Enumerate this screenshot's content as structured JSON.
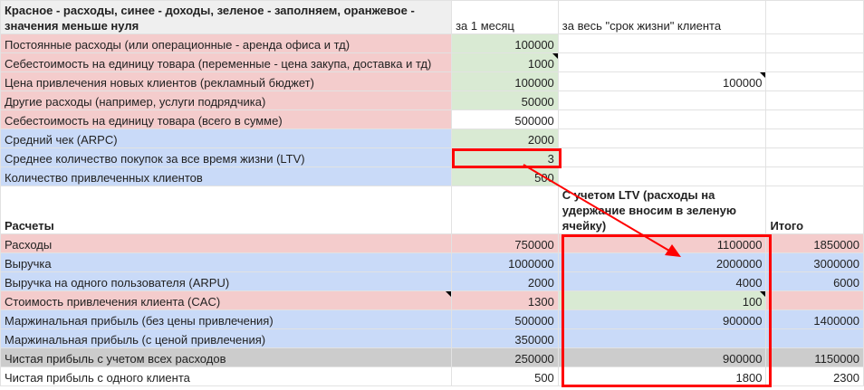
{
  "header": {
    "legend": "Красное - расходы, синее - доходы, зеленое - заполняем, оранжевое - значения меньше нуля",
    "col_month": "за 1 месяц",
    "col_lifetime": "за весь \"срок жизни\" клиента"
  },
  "inputs": [
    {
      "label": "Постоянные расходы (или операционные - аренда офиса и тд)",
      "month": "100000",
      "lifetime": ""
    },
    {
      "label": "Себестоимость на единицу товара (переменные - цена закупа, доставка и тд)",
      "month": "1000",
      "lifetime": ""
    },
    {
      "label": "Цена привлечения новых клиентов (рекламный бюджет)",
      "month": "100000",
      "lifetime": "100000"
    },
    {
      "label": "Другие расходы (например, услуги подрядчика)",
      "month": "50000",
      "lifetime": ""
    },
    {
      "label": "Себестоимость на единицу товара (всего в сумме)",
      "month": "500000",
      "lifetime": ""
    },
    {
      "label": "Средний чек (ARPC)",
      "month": "2000",
      "lifetime": ""
    },
    {
      "label": "Среднее количество покупок за все время жизни (LTV)",
      "month": "3",
      "lifetime": ""
    },
    {
      "label": "Количество привлеченных клиентов",
      "month": "500",
      "lifetime": ""
    }
  ],
  "calc_header": {
    "title": "Расчеты",
    "ltv": "С учетом LTV (расходы на удержание вносим в зеленую ячейку)",
    "total": "Итого"
  },
  "calc": [
    {
      "label": "Расходы",
      "month": "750000",
      "ltv": "1100000",
      "total": "1850000"
    },
    {
      "label": "Выручка",
      "month": "1000000",
      "ltv": "2000000",
      "total": "3000000"
    },
    {
      "label": "Выручка на одного пользователя (ARPU)",
      "month": "2000",
      "ltv": "4000",
      "total": "6000"
    },
    {
      "label": "Стоимость привлечения клиента (CAC)",
      "month": "1300",
      "ltv": "100",
      "total": ""
    },
    {
      "label": "Маржинальная прибыль (без цены привлечения)",
      "month": "500000",
      "ltv": "900000",
      "total": "1400000"
    },
    {
      "label": "Маржинальная прибыль (с ценой привлечения)",
      "month": "350000",
      "ltv": "",
      "total": ""
    },
    {
      "label": "Чистая прибыль с учетом всех расходов",
      "month": "250000",
      "ltv": "900000",
      "total": "1150000"
    },
    {
      "label": "Чистая прибыль с одного клиента",
      "month": "500",
      "ltv": "1800",
      "total": "2300"
    }
  ],
  "colors": {
    "expense": "#f4cccc",
    "income": "#c9daf8",
    "input": "#d9ead3",
    "highlight": "#ff0000"
  }
}
